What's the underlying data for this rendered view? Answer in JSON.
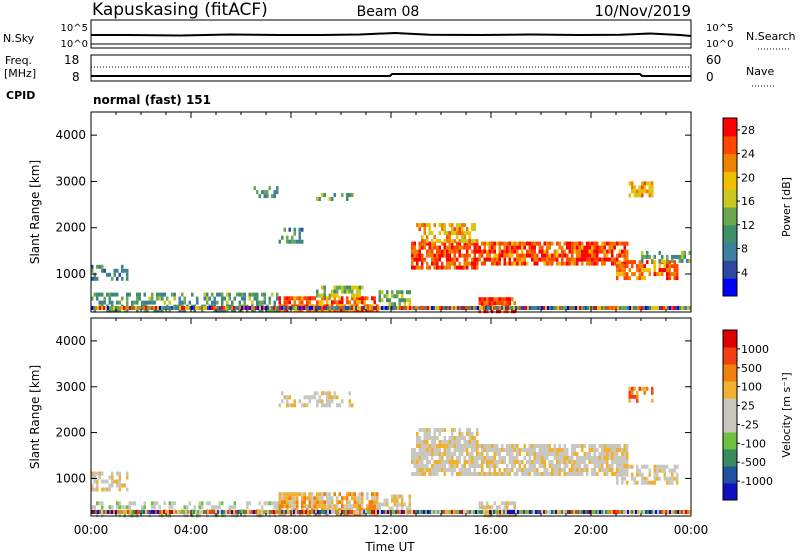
{
  "header": {
    "station": "Kapuskasing (fitACF)",
    "beam": "Beam 08",
    "date": "10/Nov/2019"
  },
  "strip": {
    "nsky_label": "N.Sky",
    "nsky_ticks": [
      "10^5",
      "10^0"
    ],
    "nsearch_label": "N.Search",
    "nsearch_ticks": [
      "10^5",
      "10^0"
    ],
    "freq_label_1": "Freq.",
    "freq_label_2": "[MHz]",
    "freq_ticks": [
      "18",
      "8"
    ],
    "nave_label": "Nave",
    "nave_ticks": [
      "60",
      "0"
    ],
    "cpid_label": "CPID",
    "cpid_value": "normal (fast) 151"
  },
  "colors": {
    "power": [
      "#0000ff",
      "#2d4aa0",
      "#3c7fa0",
      "#3f8f6a",
      "#6aa84f",
      "#c8c81e",
      "#f0c000",
      "#f08000",
      "#ff4500",
      "#ff0000"
    ],
    "velocity": [
      "#1010c0",
      "#2050a0",
      "#3a8a60",
      "#70c040",
      "#c8c8c0",
      "#c8c8c0",
      "#f0b030",
      "#f08010",
      "#f04010",
      "#e00000"
    ]
  },
  "chart_data": [
    {
      "type": "heatmap",
      "title": "",
      "ylabel": "Slant Range [km]",
      "xlabel": "",
      "ylim": [
        180,
        4500
      ],
      "yticks": [
        "1000",
        "2000",
        "3000",
        "4000"
      ],
      "colorbar": {
        "label": "Power [dB]",
        "ticks": [
          "4",
          "8",
          "12",
          "16",
          "20",
          "24",
          "28"
        ],
        "range": [
          0,
          30
        ]
      },
      "x_ticks": [
        "00:00",
        "04:00",
        "08:00",
        "12:00",
        "16:00",
        "20:00",
        "00:00"
      ],
      "regions": [
        {
          "t": [
            0.0,
            7.5
          ],
          "r": [
            200,
            600
          ],
          "level": 11,
          "density": 0.5
        },
        {
          "t": [
            0.0,
            1.5
          ],
          "r": [
            900,
            1200
          ],
          "level": 8,
          "density": 0.5
        },
        {
          "t": [
            7.5,
            11.5
          ],
          "r": [
            250,
            520
          ],
          "level": 24,
          "density": 0.8
        },
        {
          "t": [
            11.5,
            12.8
          ],
          "r": [
            250,
            650
          ],
          "level": 14,
          "density": 0.6
        },
        {
          "t": [
            12.8,
            15.5
          ],
          "r": [
            1150,
            1700
          ],
          "level": 26,
          "density": 0.8
        },
        {
          "t": [
            13.0,
            15.5
          ],
          "r": [
            1700,
            2100
          ],
          "level": 20,
          "density": 0.6
        },
        {
          "t": [
            15.5,
            21.5
          ],
          "r": [
            1200,
            1700
          ],
          "level": 25,
          "density": 0.8
        },
        {
          "t": [
            15.5,
            17.0
          ],
          "r": [
            200,
            500
          ],
          "level": 26,
          "density": 0.8
        },
        {
          "t": [
            9.0,
            11.0
          ],
          "r": [
            560,
            750
          ],
          "level": 14,
          "density": 0.6
        },
        {
          "t": [
            7.5,
            8.5
          ],
          "r": [
            1700,
            2000
          ],
          "level": 10,
          "density": 0.4
        },
        {
          "t": [
            6.5,
            7.5
          ],
          "r": [
            2700,
            2900
          ],
          "level": 10,
          "density": 0.5
        },
        {
          "t": [
            9.0,
            10.5
          ],
          "r": [
            2600,
            2750
          ],
          "level": 11,
          "density": 0.5
        },
        {
          "t": [
            21.0,
            23.5
          ],
          "r": [
            900,
            1300
          ],
          "level": 23,
          "density": 0.7
        },
        {
          "t": [
            21.5,
            22.5
          ],
          "r": [
            2700,
            3000
          ],
          "level": 20,
          "density": 0.6
        },
        {
          "t": [
            22.0,
            24.0
          ],
          "r": [
            1300,
            1500
          ],
          "level": 12,
          "density": 0.5
        }
      ]
    },
    {
      "type": "heatmap",
      "title": "",
      "ylabel": "Slant Range [km]",
      "xlabel": "Time UT",
      "ylim": [
        180,
        4500
      ],
      "yticks": [
        "1000",
        "2000",
        "3000",
        "4000"
      ],
      "colorbar": {
        "label": "Velocity [m s⁻¹]",
        "ticks": [
          "1000",
          "500",
          "100",
          "25",
          "-25",
          "-100",
          "-500",
          "-1000"
        ]
      },
      "x_ticks": [
        "00:00",
        "04:00",
        "08:00",
        "12:00",
        "16:00",
        "20:00",
        "00:00"
      ],
      "regions": [
        {
          "t": [
            0.0,
            7.5
          ],
          "r": [
            200,
            500
          ],
          "level": 4,
          "density": 0.45
        },
        {
          "t": [
            0.0,
            1.5
          ],
          "r": [
            800,
            1150
          ],
          "level": 5,
          "density": 0.5
        },
        {
          "t": [
            7.5,
            11.5
          ],
          "r": [
            250,
            700
          ],
          "level": 6,
          "density": 0.8
        },
        {
          "t": [
            12.8,
            21.5
          ],
          "r": [
            1100,
            1750
          ],
          "level": 5,
          "density": 0.8
        },
        {
          "t": [
            13.0,
            15.5
          ],
          "r": [
            1700,
            2100
          ],
          "level": 5,
          "density": 0.6
        },
        {
          "t": [
            15.5,
            17.0
          ],
          "r": [
            200,
            500
          ],
          "level": 5,
          "density": 0.8
        },
        {
          "t": [
            11.5,
            12.8
          ],
          "r": [
            250,
            650
          ],
          "level": 5,
          "density": 0.6
        },
        {
          "t": [
            21.0,
            23.5
          ],
          "r": [
            900,
            1300
          ],
          "level": 5,
          "density": 0.6
        },
        {
          "t": [
            21.5,
            22.5
          ],
          "r": [
            2700,
            3000
          ],
          "level": 7,
          "density": 0.6
        },
        {
          "t": [
            7.5,
            10.5
          ],
          "r": [
            2600,
            2900
          ],
          "level": 5,
          "density": 0.4
        }
      ]
    }
  ]
}
